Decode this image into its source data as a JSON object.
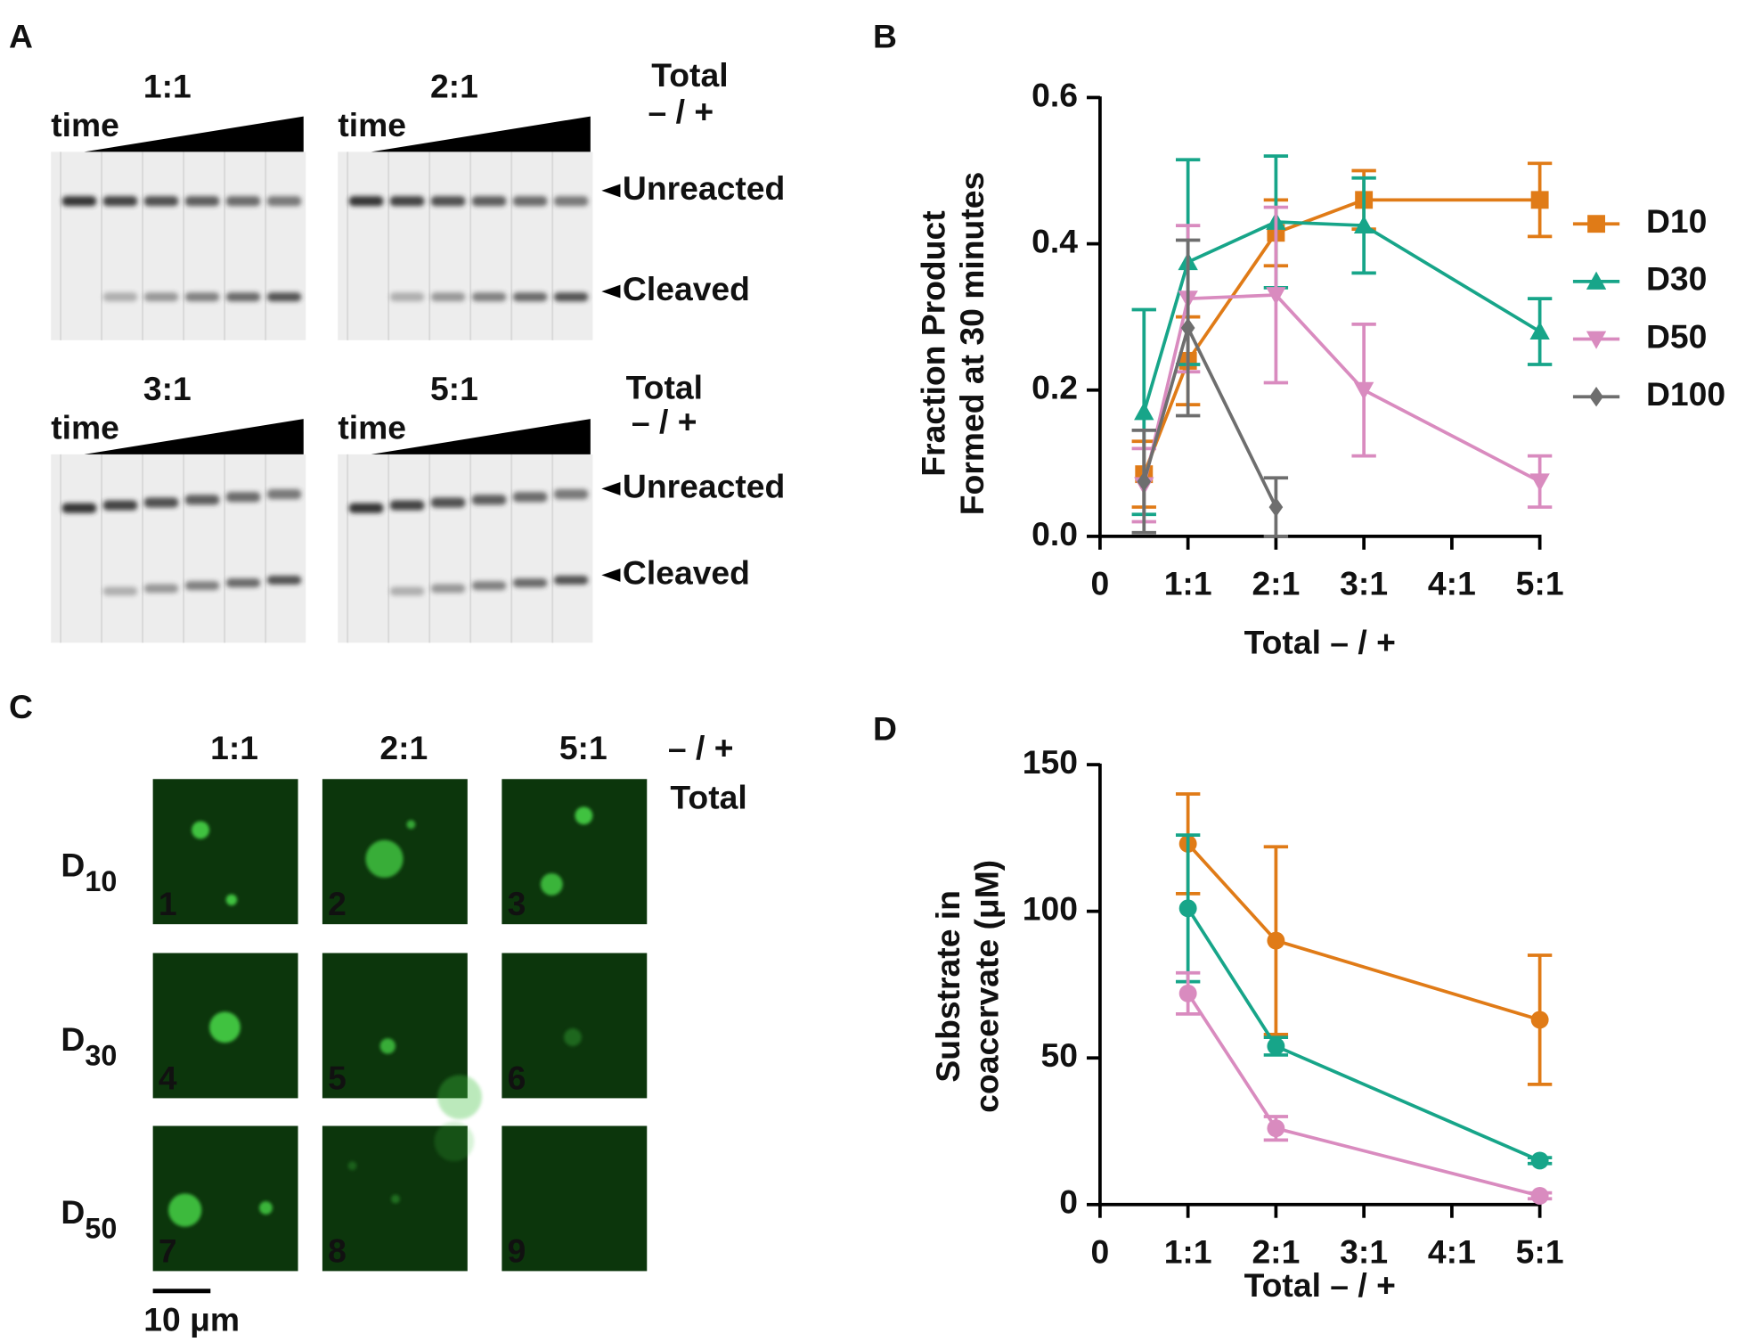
{
  "panel_a": {
    "label": "A",
    "gels": [
      {
        "ratio": "1:1",
        "time": "time"
      },
      {
        "ratio": "2:1",
        "time": "time"
      },
      {
        "ratio": "3:1",
        "time": "time"
      },
      {
        "ratio": "5:1",
        "time": "time"
      }
    ],
    "legends": [
      {
        "title": "Total",
        "ratio": "– / +"
      },
      {
        "title": "Total",
        "ratio": "– / +"
      }
    ],
    "bands": [
      {
        "unreacted": "Unreacted",
        "cleaved": "Cleaved"
      },
      {
        "unreacted": "Unreacted",
        "cleaved": "Cleaved"
      }
    ]
  },
  "chart_data": [
    {
      "panel_label": "B",
      "type": "line",
      "xlabel": "Total – / +",
      "ylabel": [
        "Fraction Product",
        "Formed at 30 minutes"
      ],
      "xlim": [
        0,
        5
      ],
      "ylim": [
        0,
        0.6
      ],
      "xticks": [
        0,
        {
          "value": 1,
          "label": "1:1"
        },
        {
          "value": 2,
          "label": "2:1"
        },
        {
          "value": 3,
          "label": "3:1"
        },
        {
          "value": 4,
          "label": "4:1"
        },
        {
          "value": 5,
          "label": "5:1"
        }
      ],
      "yticks": [
        {
          "value": 0,
          "label": "0.0"
        },
        0.2,
        0.4,
        0.6
      ],
      "legend": "right",
      "series": [
        {
          "name": "D10",
          "color": "#e07b17",
          "marker": "square",
          "x": [
            0.5,
            1,
            2,
            3,
            5
          ],
          "values": [
            0.085,
            0.24,
            0.415,
            0.46,
            0.46
          ],
          "errors": [
            0.045,
            0.06,
            0.045,
            0.04,
            0.05
          ]
        },
        {
          "name": "D30",
          "color": "#17a589",
          "marker": "triangle-up",
          "x": [
            0.5,
            1,
            2,
            3,
            5
          ],
          "values": [
            0.17,
            0.375,
            0.43,
            0.425,
            0.28
          ],
          "errors": [
            0.14,
            0.14,
            0.09,
            0.065,
            0.045
          ]
        },
        {
          "name": "D50",
          "color": "#d98bbf",
          "marker": "triangle-down",
          "x": [
            0.5,
            1,
            2,
            3,
            5
          ],
          "values": [
            0.07,
            0.325,
            0.33,
            0.2,
            0.075
          ],
          "errors": [
            0.05,
            0.1,
            0.12,
            0.09,
            0.035
          ]
        },
        {
          "name": "D100",
          "color": "#6e6e6e",
          "marker": "diamond",
          "x": [
            0.5,
            1,
            2
          ],
          "values": [
            0.075,
            0.285,
            0.04
          ],
          "errors": [
            0.07,
            0.12,
            0.04
          ]
        }
      ]
    },
    {
      "panel_label": "D",
      "type": "line",
      "xlabel": "Total – / +",
      "ylabel": [
        "Substrate in",
        "coacervate (μM)"
      ],
      "xlim": [
        0,
        5
      ],
      "ylim": [
        0,
        150
      ],
      "xticks": [
        0,
        {
          "value": 1,
          "label": "1:1"
        },
        {
          "value": 2,
          "label": "2:1"
        },
        {
          "value": 3,
          "label": "3:1"
        },
        {
          "value": 4,
          "label": "4:1"
        },
        {
          "value": 5,
          "label": "5:1"
        }
      ],
      "yticks": [
        0,
        50,
        100,
        150
      ],
      "series": [
        {
          "color": "#e07b17",
          "marker": "circle",
          "x": [
            1,
            2,
            5
          ],
          "values": [
            123,
            90,
            63
          ],
          "errors": [
            17,
            32,
            22
          ]
        },
        {
          "color": "#17a589",
          "marker": "circle",
          "x": [
            1,
            2,
            5
          ],
          "values": [
            101,
            54,
            15
          ],
          "errors": [
            25,
            3,
            1
          ]
        },
        {
          "color": "#d98bbf",
          "marker": "circle",
          "x": [
            1,
            2,
            5
          ],
          "values": [
            72,
            26,
            3
          ],
          "errors": [
            7,
            4,
            1
          ]
        }
      ]
    }
  ],
  "panel_c": {
    "label": "C",
    "columns": [
      "1:1",
      "2:1",
      "5:1"
    ],
    "ratio_header": "– / +",
    "total_header": "Total",
    "rows": [
      {
        "name": "D",
        "subscript": "10",
        "color": "#d9661f"
      },
      {
        "name": "D",
        "subscript": "30",
        "color": "#17a589"
      },
      {
        "name": "D",
        "subscript": "50",
        "color": "#d98bbf"
      }
    ],
    "tiles": [
      "1",
      "2",
      "3",
      "4",
      "5",
      "6",
      "7",
      "8",
      "9"
    ],
    "scale_bar": "10 μm"
  }
}
